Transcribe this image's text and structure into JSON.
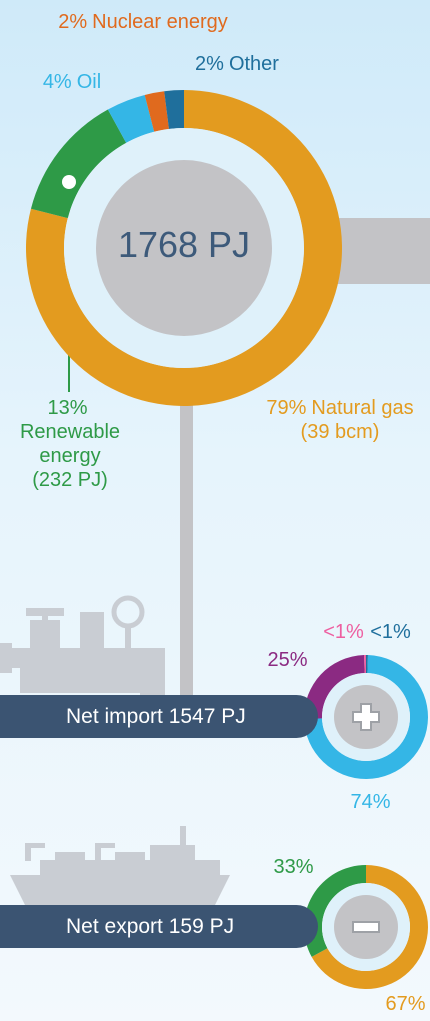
{
  "chart_data": [
    {
      "type": "donut",
      "center_label": "1768 PJ",
      "categories": [
        "Natural gas",
        "Renewable energy",
        "Oil",
        "Nuclear energy",
        "Other"
      ],
      "values": [
        79,
        13,
        4,
        2,
        2
      ],
      "value_labels": [
        "79%",
        "13%",
        "4%",
        "2%",
        "2%"
      ],
      "sublabels": [
        "(39 bcm)",
        "(232 PJ)",
        null,
        null,
        null
      ],
      "colors": [
        "#e39b1f",
        "#2e9a47",
        "#34b6e6",
        "#e06a1e",
        "#1f6f9c"
      ]
    },
    {
      "type": "donut",
      "title": "Net import 1547 PJ",
      "values": [
        0.5,
        74,
        25,
        0.5
      ],
      "value_labels": [
        "<1%",
        "74%",
        "25%",
        "<1%"
      ],
      "colors": [
        "#1f6f9c",
        "#34b6e6",
        "#8b2a82",
        "#ee5fa0"
      ]
    },
    {
      "type": "donut",
      "title": "Net export 159 PJ",
      "values": [
        67,
        33
      ],
      "value_labels": [
        "67%",
        "33%"
      ],
      "colors": [
        "#e39b1f",
        "#2e9a47"
      ]
    }
  ]
}
